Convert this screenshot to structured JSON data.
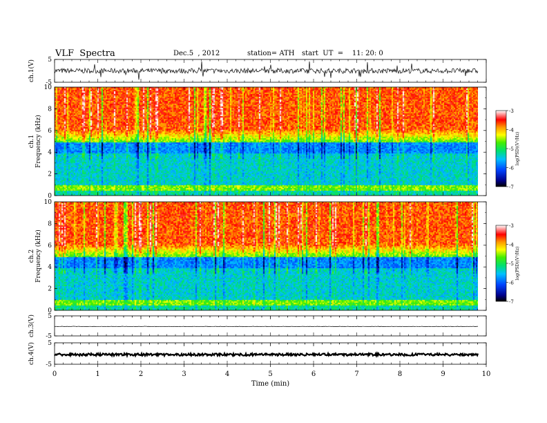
{
  "header": {
    "title": "VLF  Spectra",
    "date": "Dec.5  , 2012",
    "station": "station= ATH",
    "start": "start  UT  =    11: 20: 0"
  },
  "chart_data": [
    {
      "type": "line",
      "panel": "waveform-ch1",
      "ylabel": "ch.1(V)",
      "ylim": [
        -5,
        5
      ],
      "yticks": [
        "5",
        "-5"
      ],
      "xlim": [
        0,
        10
      ],
      "data_end": 9.8,
      "baseline": 0
    },
    {
      "type": "heatmap",
      "panel": "spectrogram-ch1",
      "ylabel": "ch.1\nFrequency  (kHz)",
      "ylim": [
        0,
        10
      ],
      "yticks": [
        "0",
        "2",
        "4",
        "6",
        "8",
        "10"
      ],
      "xlim": [
        0,
        10
      ],
      "data_end": 9.8,
      "colorbar": {
        "label": "log(PSD)(V²/Hz)",
        "range": [
          -7,
          -3
        ],
        "ticks": [
          "-3",
          "-4",
          "-5",
          "-6",
          "-7"
        ]
      }
    },
    {
      "type": "heatmap",
      "panel": "spectrogram-ch2",
      "ylabel": "ch.2\nFrequency  (kHz)",
      "ylim": [
        0,
        10
      ],
      "yticks": [
        "0",
        "2",
        "4",
        "6",
        "8",
        "10"
      ],
      "xlim": [
        0,
        10
      ],
      "data_end": 9.8,
      "colorbar": {
        "label": "log(PSD)(V²/Hz)",
        "range": [
          -7,
          -3
        ],
        "ticks": [
          "-3",
          "-4",
          "-5",
          "-6",
          "-7"
        ]
      }
    },
    {
      "type": "line",
      "panel": "waveform-ch3",
      "ylabel": "ch.3(V)",
      "ylim": [
        -5,
        5
      ],
      "yticks": [
        "5",
        "-5"
      ],
      "xlim": [
        0,
        10
      ],
      "data_end": 9.8,
      "baseline": -0.3
    },
    {
      "type": "line",
      "panel": "waveform-ch4",
      "ylabel": "ch.4(V)",
      "ylim": [
        -5,
        5
      ],
      "yticks": [
        "5",
        "-5"
      ],
      "xlim": [
        0,
        10
      ],
      "data_end": 9.8,
      "baseline": -0.5
    }
  ],
  "xaxis": {
    "label": "Time  (min)",
    "ticks": [
      "0",
      "1",
      "2",
      "3",
      "4",
      "5",
      "6",
      "7",
      "8",
      "9",
      "10"
    ]
  }
}
